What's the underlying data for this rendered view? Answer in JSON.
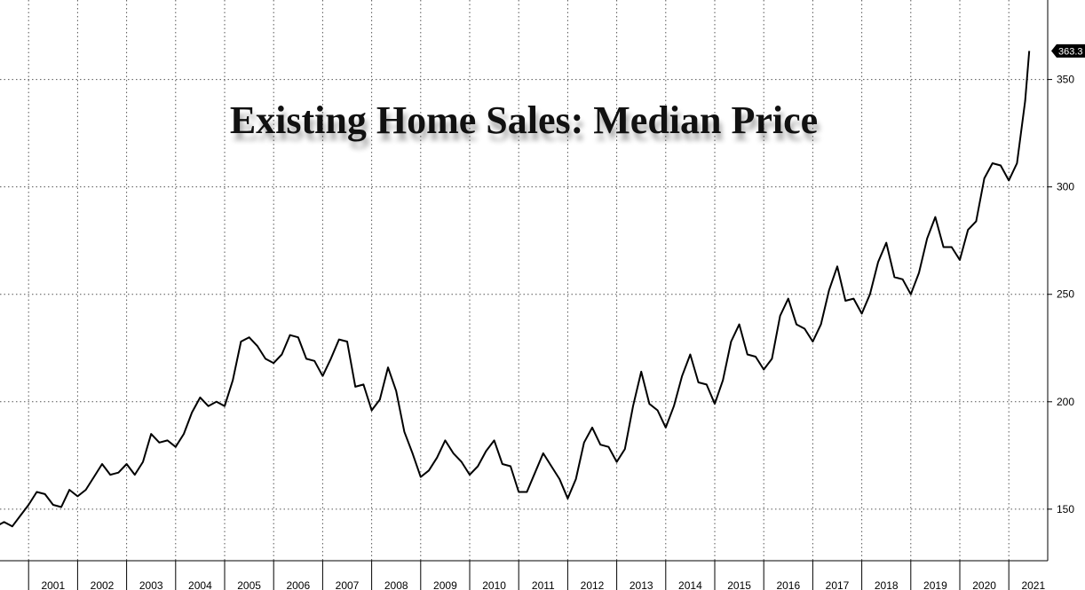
{
  "chart_data": {
    "type": "line",
    "title": "Existing Home Sales: Median Price",
    "xlabel": "",
    "ylabel": "",
    "x_ticks": [
      "2001",
      "2002",
      "2003",
      "2004",
      "2005",
      "2006",
      "2007",
      "2008",
      "2009",
      "2010",
      "2011",
      "2012",
      "2013",
      "2014",
      "2015",
      "2016",
      "2017",
      "2018",
      "2019",
      "2020",
      "2021"
    ],
    "y_ticks": [
      150,
      200,
      250,
      300,
      350
    ],
    "ylim": [
      126,
      387
    ],
    "xlim": [
      "2000-01",
      "2021-08"
    ],
    "grid": true,
    "legend": "none",
    "last_value_label": "363.3",
    "series": [
      {
        "values": [
          [
            "2000-01",
            147
          ],
          [
            "2000-03",
            147
          ],
          [
            "2000-05",
            142
          ],
          [
            "2000-07",
            144
          ],
          [
            "2000-09",
            142
          ],
          [
            "2000-11",
            147
          ],
          [
            "2001-01",
            152
          ],
          [
            "2001-03",
            158
          ],
          [
            "2001-05",
            157
          ],
          [
            "2001-07",
            152
          ],
          [
            "2001-09",
            151
          ],
          [
            "2001-11",
            159
          ],
          [
            "2002-01",
            156
          ],
          [
            "2002-03",
            159
          ],
          [
            "2002-05",
            165
          ],
          [
            "2002-07",
            171
          ],
          [
            "2002-09",
            166
          ],
          [
            "2002-11",
            167
          ],
          [
            "2003-01",
            171
          ],
          [
            "2003-03",
            166
          ],
          [
            "2003-05",
            172
          ],
          [
            "2003-07",
            185
          ],
          [
            "2003-09",
            181
          ],
          [
            "2003-11",
            182
          ],
          [
            "2004-01",
            179
          ],
          [
            "2004-03",
            185
          ],
          [
            "2004-05",
            195
          ],
          [
            "2004-07",
            202
          ],
          [
            "2004-09",
            198
          ],
          [
            "2004-11",
            200
          ],
          [
            "2005-01",
            198
          ],
          [
            "2005-03",
            210
          ],
          [
            "2005-05",
            228
          ],
          [
            "2005-07",
            230
          ],
          [
            "2005-09",
            226
          ],
          [
            "2005-11",
            220
          ],
          [
            "2006-01",
            218
          ],
          [
            "2006-03",
            222
          ],
          [
            "2006-05",
            231
          ],
          [
            "2006-07",
            230
          ],
          [
            "2006-09",
            220
          ],
          [
            "2006-11",
            219
          ],
          [
            "2007-01",
            212
          ],
          [
            "2007-03",
            220
          ],
          [
            "2007-05",
            229
          ],
          [
            "2007-07",
            228
          ],
          [
            "2007-09",
            207
          ],
          [
            "2007-11",
            208
          ],
          [
            "2008-01",
            196
          ],
          [
            "2008-03",
            201
          ],
          [
            "2008-05",
            216
          ],
          [
            "2008-07",
            205
          ],
          [
            "2008-09",
            186
          ],
          [
            "2008-11",
            176
          ],
          [
            "2009-01",
            165
          ],
          [
            "2009-03",
            168
          ],
          [
            "2009-05",
            174
          ],
          [
            "2009-07",
            182
          ],
          [
            "2009-09",
            176
          ],
          [
            "2009-11",
            172
          ],
          [
            "2010-01",
            166
          ],
          [
            "2010-03",
            170
          ],
          [
            "2010-05",
            177
          ],
          [
            "2010-07",
            182
          ],
          [
            "2010-09",
            171
          ],
          [
            "2010-11",
            170
          ],
          [
            "2011-01",
            158
          ],
          [
            "2011-03",
            158
          ],
          [
            "2011-05",
            167
          ],
          [
            "2011-07",
            176
          ],
          [
            "2011-09",
            170
          ],
          [
            "2011-11",
            164
          ],
          [
            "2012-01",
            155
          ],
          [
            "2012-03",
            164
          ],
          [
            "2012-05",
            181
          ],
          [
            "2012-07",
            188
          ],
          [
            "2012-09",
            180
          ],
          [
            "2012-11",
            179
          ],
          [
            "2013-01",
            172
          ],
          [
            "2013-03",
            178
          ],
          [
            "2013-05",
            198
          ],
          [
            "2013-07",
            214
          ],
          [
            "2013-09",
            199
          ],
          [
            "2013-11",
            196
          ],
          [
            "2014-01",
            188
          ],
          [
            "2014-03",
            198
          ],
          [
            "2014-05",
            212
          ],
          [
            "2014-07",
            222
          ],
          [
            "2014-09",
            209
          ],
          [
            "2014-11",
            208
          ],
          [
            "2015-01",
            199
          ],
          [
            "2015-03",
            210
          ],
          [
            "2015-05",
            228
          ],
          [
            "2015-07",
            236
          ],
          [
            "2015-09",
            222
          ],
          [
            "2015-11",
            221
          ],
          [
            "2016-01",
            215
          ],
          [
            "2016-03",
            220
          ],
          [
            "2016-05",
            240
          ],
          [
            "2016-07",
            248
          ],
          [
            "2016-09",
            236
          ],
          [
            "2016-11",
            234
          ],
          [
            "2017-01",
            228
          ],
          [
            "2017-03",
            236
          ],
          [
            "2017-05",
            252
          ],
          [
            "2017-07",
            263
          ],
          [
            "2017-09",
            247
          ],
          [
            "2017-11",
            248
          ],
          [
            "2018-01",
            241
          ],
          [
            "2018-03",
            250
          ],
          [
            "2018-05",
            265
          ],
          [
            "2018-07",
            274
          ],
          [
            "2018-09",
            258
          ],
          [
            "2018-11",
            257
          ],
          [
            "2019-01",
            250
          ],
          [
            "2019-03",
            260
          ],
          [
            "2019-05",
            276
          ],
          [
            "2019-07",
            286
          ],
          [
            "2019-09",
            272
          ],
          [
            "2019-11",
            272
          ],
          [
            "2020-01",
            266
          ],
          [
            "2020-03",
            280
          ],
          [
            "2020-05",
            284
          ],
          [
            "2020-07",
            304
          ],
          [
            "2020-09",
            311
          ],
          [
            "2020-11",
            310
          ],
          [
            "2021-01",
            303
          ],
          [
            "2021-03",
            311
          ],
          [
            "2021-05",
            340
          ],
          [
            "2021-06",
            363.3
          ]
        ]
      }
    ]
  }
}
